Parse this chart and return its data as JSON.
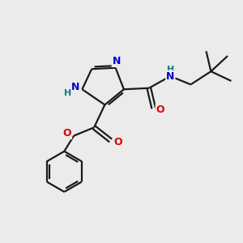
{
  "bg_color": "#ebebeb",
  "bond_color": "#1a1a1a",
  "N_color": "#0000cc",
  "O_color": "#dd0000",
  "H_color": "#008080",
  "figsize": [
    3.0,
    3.0
  ],
  "dpi": 100,
  "xlim": [
    0,
    10
  ],
  "ylim": [
    0,
    10
  ]
}
